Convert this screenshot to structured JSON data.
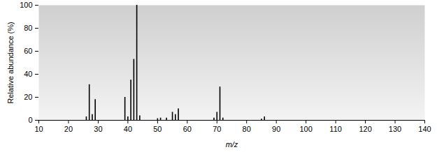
{
  "chart_data": {
    "type": "bar",
    "x_label": "m/z",
    "y_label": "Relative abundance (%)",
    "x": [
      26,
      27,
      28,
      29,
      39,
      40,
      41,
      42,
      43,
      44,
      50,
      51,
      53,
      55,
      56,
      57,
      69,
      70,
      71,
      72,
      85,
      86
    ],
    "values": [
      3,
      31,
      5,
      18,
      20,
      3,
      35,
      53,
      100,
      4,
      1.5,
      2,
      2,
      7,
      5,
      10,
      2,
      7,
      29,
      2,
      1,
      3
    ],
    "color": "#000000",
    "xlim": [
      10,
      140
    ],
    "xticks": [
      10,
      20,
      30,
      40,
      50,
      60,
      70,
      80,
      90,
      100,
      110,
      120,
      130,
      140
    ],
    "ylim": [
      0,
      100
    ],
    "yticks": [
      0,
      20,
      40,
      60,
      80,
      100
    ],
    "grid": false
  }
}
